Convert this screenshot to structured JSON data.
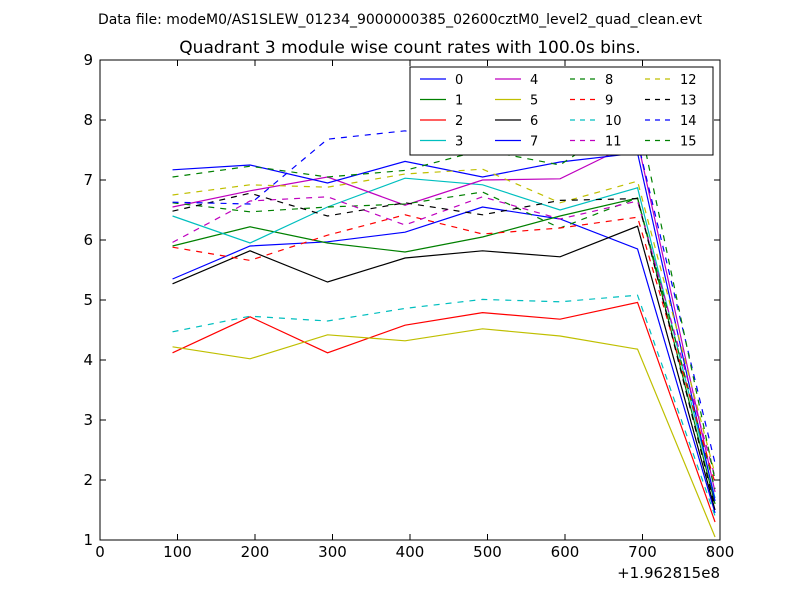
{
  "suptitle": "Data file: modeM0/AS1SLEW_01234_9000000385_02600cztM0_level2_quad_clean.evt",
  "chart_data": {
    "type": "line",
    "title": "Quadrant 3 module wise count rates with 100.0s bins.",
    "xlabel": "",
    "ylabel": "",
    "x_offset_label": "+1.962815e8",
    "xlim": [
      0,
      800
    ],
    "ylim": [
      1,
      9
    ],
    "xticks": [
      0,
      100,
      200,
      300,
      400,
      500,
      600,
      700,
      800
    ],
    "yticks": [
      1,
      2,
      3,
      4,
      5,
      6,
      7,
      8,
      9
    ],
    "grid": false,
    "legend_position": "top-right",
    "x": [
      93.6,
      193.6,
      293.6,
      393.6,
      493.6,
      593.6,
      693.6,
      793.6
    ],
    "series": [
      {
        "name": "0",
        "color": "#0000ff",
        "style": "solid",
        "values": [
          5.35,
          5.9,
          5.97,
          6.13,
          6.55,
          6.35,
          5.85,
          1.45
        ]
      },
      {
        "name": "1",
        "color": "#008000",
        "style": "solid",
        "values": [
          5.9,
          6.22,
          5.95,
          5.8,
          6.05,
          6.4,
          6.7,
          1.6
        ]
      },
      {
        "name": "2",
        "color": "#ff0000",
        "style": "solid",
        "values": [
          4.12,
          4.72,
          4.12,
          4.58,
          4.79,
          4.68,
          4.96,
          1.3
        ]
      },
      {
        "name": "3",
        "color": "#00bfbf",
        "style": "solid",
        "values": [
          6.4,
          5.95,
          6.55,
          7.03,
          6.92,
          6.5,
          6.87,
          1.7
        ]
      },
      {
        "name": "4",
        "color": "#bf00bf",
        "style": "solid",
        "values": [
          6.55,
          6.82,
          7.05,
          6.58,
          7.0,
          7.02,
          7.65,
          1.8
        ]
      },
      {
        "name": "5",
        "color": "#bfbf00",
        "style": "solid",
        "values": [
          4.22,
          4.02,
          4.42,
          4.32,
          4.52,
          4.4,
          4.18,
          1.05
        ]
      },
      {
        "name": "6",
        "color": "#000000",
        "style": "solid",
        "values": [
          5.27,
          5.82,
          5.3,
          5.7,
          5.82,
          5.72,
          6.23,
          1.5
        ]
      },
      {
        "name": "7",
        "color": "#0000ff",
        "style": "solid",
        "values": [
          7.17,
          7.25,
          6.95,
          7.31,
          7.05,
          7.3,
          7.45,
          1.65
        ]
      },
      {
        "name": "8",
        "color": "#008000",
        "style": "dashed",
        "values": [
          6.62,
          6.47,
          6.55,
          6.6,
          6.8,
          6.2,
          6.7,
          1.85
        ]
      },
      {
        "name": "9",
        "color": "#ff0000",
        "style": "dashed",
        "values": [
          5.88,
          5.66,
          6.08,
          6.42,
          6.1,
          6.2,
          6.38,
          1.95
        ]
      },
      {
        "name": "10",
        "color": "#00bfbf",
        "style": "dashed",
        "values": [
          4.47,
          4.73,
          4.65,
          4.86,
          5.01,
          4.97,
          5.08,
          1.4
        ]
      },
      {
        "name": "11",
        "color": "#bf00bf",
        "style": "dashed",
        "values": [
          5.96,
          6.65,
          6.72,
          6.25,
          6.72,
          6.35,
          6.65,
          2.05
        ]
      },
      {
        "name": "12",
        "color": "#bfbf00",
        "style": "dashed",
        "values": [
          6.75,
          6.92,
          6.88,
          7.1,
          7.18,
          6.62,
          6.98,
          2.1
        ]
      },
      {
        "name": "13",
        "color": "#000000",
        "style": "dashed",
        "values": [
          6.48,
          6.78,
          6.4,
          6.62,
          6.42,
          6.66,
          6.69,
          1.55
        ]
      },
      {
        "name": "14",
        "color": "#0000ff",
        "style": "dashed",
        "values": [
          6.63,
          6.6,
          7.68,
          7.82,
          7.5,
          7.69,
          7.65,
          2.28
        ]
      },
      {
        "name": "15",
        "color": "#008000",
        "style": "dashed",
        "values": [
          7.05,
          7.23,
          7.05,
          7.16,
          7.5,
          7.25,
          8.12,
          2.0
        ]
      }
    ]
  }
}
